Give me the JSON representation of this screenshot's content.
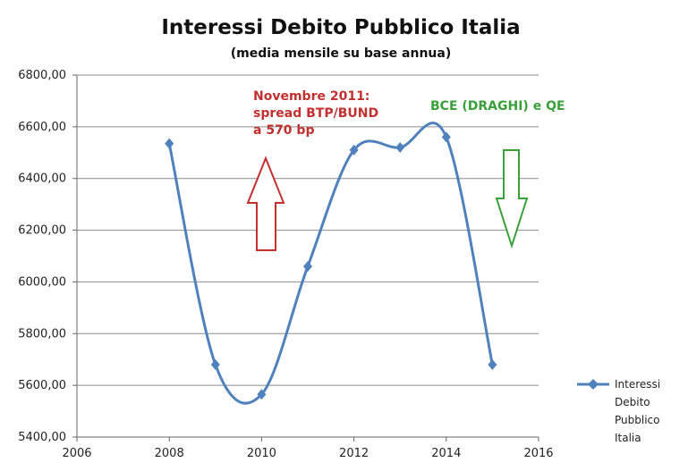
{
  "chart_data": {
    "type": "line",
    "title": "Interessi Debito Pubblico Italia",
    "subtitle": "(media mensile su base annua)",
    "xlim": [
      2006,
      2016
    ],
    "ylim": [
      5400,
      6800
    ],
    "x_ticks": [
      "2006",
      "2008",
      "2010",
      "2012",
      "2014",
      "2016"
    ],
    "y_ticks": [
      "5400,00",
      "5600,00",
      "5800,00",
      "6000,00",
      "6200,00",
      "6400,00",
      "6600,00",
      "6800,00"
    ],
    "grid": "horizontal",
    "legend_position": "right",
    "series": [
      {
        "name": "Interessi Debito Pubblico Italia",
        "legend_lines": [
          "Interessi",
          "Debito",
          "Pubblico",
          "Italia"
        ],
        "color": "#4f81bd",
        "x": [
          2008,
          2009,
          2010,
          2011,
          2012,
          2013,
          2014,
          2015
        ],
        "y": [
          6535,
          5680,
          5565,
          6060,
          6510,
          6520,
          6560,
          5680
        ]
      }
    ],
    "annotations": {
      "red": {
        "lines": [
          "Novembre 2011:",
          "spread BTP/BUND",
          "a 570 bp"
        ],
        "color": "#c0312f",
        "arrow": "up"
      },
      "green": {
        "lines": [
          "BCE (DRAGHI) e QE"
        ],
        "color": "#3aa03a",
        "arrow": "down"
      }
    }
  }
}
